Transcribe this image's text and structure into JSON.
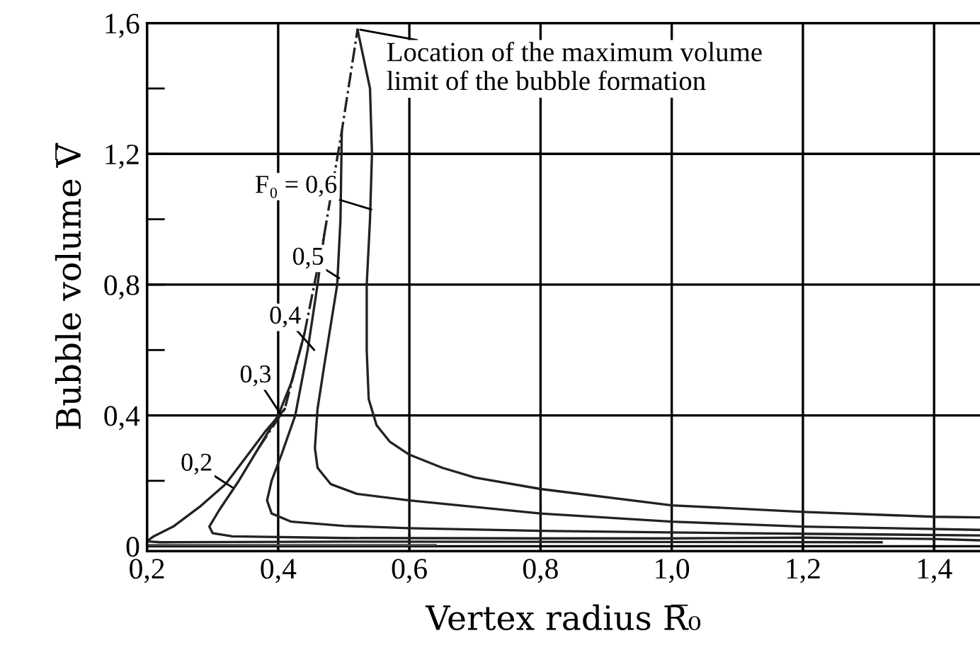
{
  "chart_data": {
    "type": "line",
    "xlabel": "Vertex radius R̅₀",
    "ylabel": "Bubble volume V̅",
    "xlim": [
      0.2,
      1.47
    ],
    "ylim": [
      -0.015,
      1.6
    ],
    "xticks": [
      {
        "value": 0.2,
        "label": "0,2"
      },
      {
        "value": 0.4,
        "label": "0,4"
      },
      {
        "value": 0.6,
        "label": "0,6"
      },
      {
        "value": 0.8,
        "label": "0,8"
      },
      {
        "value": 1.0,
        "label": "1,0"
      },
      {
        "value": 1.2,
        "label": "1,2"
      },
      {
        "value": 1.4,
        "label": "1,4"
      }
    ],
    "yticks": [
      0,
      {
        "value": 0.2,
        "label": null
      },
      {
        "value": 0.4,
        "label": "0,4"
      },
      {
        "value": 0.6,
        "label": null
      },
      {
        "value": 0.8,
        "label": "0,8"
      },
      {
        "value": 1.0,
        "label": null
      },
      {
        "value": 1.2,
        "label": "1,2"
      },
      {
        "value": 1.4,
        "label": null
      },
      {
        "value": 1.6,
        "label": "1,6"
      }
    ],
    "grid": true,
    "legend": false,
    "marker": "none",
    "series": [
      {
        "color": "#222222",
        "line_style": "solid",
        "x": [
          0.41,
          0.38,
          0.35,
          0.32,
          0.28,
          0.24,
          0.21,
          0.2,
          0.22,
          0.5,
          1.0,
          1.32
        ],
        "values": [
          0.42,
          0.35,
          0.27,
          0.19,
          0.12,
          0.06,
          0.03,
          0.015,
          0.012,
          0.014,
          0.013,
          0.012
        ]
      },
      {
        "color": "#444444",
        "line_style": "solid",
        "x": [
          0.2,
          0.64
        ],
        "values": [
          0.003,
          0.003
        ]
      },
      {
        "color": "#222222",
        "line_style": "solid",
        "x": [
          0.44,
          0.42,
          0.4,
          0.37,
          0.34,
          0.31,
          0.295,
          0.3,
          0.33,
          0.5,
          0.8,
          1.0,
          1.2,
          1.4,
          1.47
        ],
        "values": [
          0.65,
          0.5,
          0.4,
          0.3,
          0.2,
          0.11,
          0.06,
          0.04,
          0.03,
          0.025,
          0.024,
          0.024,
          0.026,
          0.022,
          0.018
        ]
      },
      {
        "color": "#222222",
        "line_style": "solid",
        "x": [
          0.47,
          0.46,
          0.445,
          0.426,
          0.405,
          0.39,
          0.383,
          0.39,
          0.42,
          0.5,
          0.6,
          0.8,
          1.0,
          1.2,
          1.47
        ],
        "values": [
          0.95,
          0.8,
          0.6,
          0.4,
          0.28,
          0.2,
          0.14,
          0.1,
          0.075,
          0.062,
          0.055,
          0.047,
          0.042,
          0.038,
          0.033
        ]
      },
      {
        "color": "#222222",
        "line_style": "solid",
        "x": [
          0.497,
          0.495,
          0.49,
          0.47,
          0.46,
          0.456,
          0.46,
          0.48,
          0.52,
          0.6,
          0.8,
          1.0,
          1.2,
          1.47
        ],
        "values": [
          1.27,
          1.0,
          0.8,
          0.55,
          0.42,
          0.3,
          0.24,
          0.19,
          0.16,
          0.14,
          0.1,
          0.075,
          0.06,
          0.05
        ]
      },
      {
        "color": "#222222",
        "line_style": "solid",
        "x": [
          0.521,
          0.54,
          0.543,
          0.54,
          0.535,
          0.535,
          0.538,
          0.55,
          0.57,
          0.6,
          0.65,
          0.7,
          0.8,
          1.0,
          1.2,
          1.4,
          1.47
        ],
        "values": [
          1.58,
          1.4,
          1.2,
          1.0,
          0.8,
          0.6,
          0.45,
          0.37,
          0.32,
          0.28,
          0.24,
          0.21,
          0.175,
          0.125,
          0.105,
          0.09,
          0.088
        ]
      },
      {
        "color": "#222222",
        "line_style": "dashdot",
        "x": [
          0.37,
          0.41,
          0.44,
          0.47,
          0.497,
          0.521
        ],
        "values": [
          0.3,
          0.42,
          0.65,
          0.95,
          1.27,
          1.58
        ]
      }
    ],
    "annotations": [
      {
        "text": "Location of the maximum volume\nlimit of the bubble formation",
        "x": 0.525,
        "y": 1.58
      },
      {
        "text": "F₀ = 0,6",
        "x": 0.542,
        "y": 1.03
      },
      {
        "text": "0,5",
        "x": 0.493,
        "y": 0.82
      },
      {
        "text": "0,4",
        "x": 0.455,
        "y": 0.6
      },
      {
        "text": "0,3",
        "x": 0.405,
        "y": 0.4
      },
      {
        "text": "0,2",
        "x": 0.33,
        "y": 0.18
      }
    ]
  }
}
